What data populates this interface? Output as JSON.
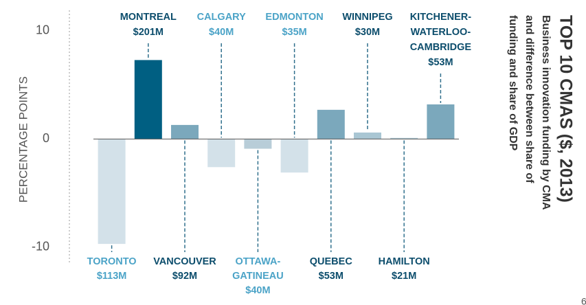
{
  "chart_data": {
    "type": "bar",
    "title": "TOP 10 CMAS ($, 2013)",
    "subtitle_lines": [
      "Business innovation funding by CMA",
      "and difference between share of",
      "funding and share of GDP"
    ],
    "y_label": "PERCENTAGE POINTS",
    "categories": [
      [
        "TORONTO"
      ],
      [
        "MONTREAL"
      ],
      [
        "VANCOUVER"
      ],
      [
        "CALGARY"
      ],
      [
        "OTTAWA-",
        "GATINEAU"
      ],
      [
        "EDMONTON"
      ],
      [
        "QUEBEC"
      ],
      [
        "WINNIPEG"
      ],
      [
        "HAMILTON"
      ],
      [
        "KITCHENER-",
        "WATERLOO-",
        "CAMBRIDGE"
      ]
    ],
    "funding_labels": [
      "$113M",
      "$201M",
      "$92M",
      "$40M",
      "$40M",
      "$35M",
      "$53M",
      "$30M",
      "$21M",
      "$53M"
    ],
    "values": [
      -9.7,
      7.3,
      1.3,
      -2.6,
      -0.9,
      -3.1,
      2.7,
      0.6,
      0.1,
      3.2
    ],
    "colors": [
      "#d3e1e9",
      "#005f82",
      "#7ba8bc",
      "#d3e1e9",
      "#b8cdd8",
      "#d3e1e9",
      "#7ba8bc",
      "#a9c6d3",
      "#a9c6d3",
      "#7ba8bc"
    ],
    "label_colors": [
      "#4ba3c7",
      "#0c4d6c",
      "#0c4d6c",
      "#4ba3c7",
      "#4ba3c7",
      "#4ba3c7",
      "#0c4d6c",
      "#0c4d6c",
      "#0c4d6c",
      "#0c4d6c"
    ],
    "ylim": [
      -11.6,
      11.9
    ],
    "yticks": [
      -10,
      0,
      10
    ],
    "page_number": "6"
  }
}
